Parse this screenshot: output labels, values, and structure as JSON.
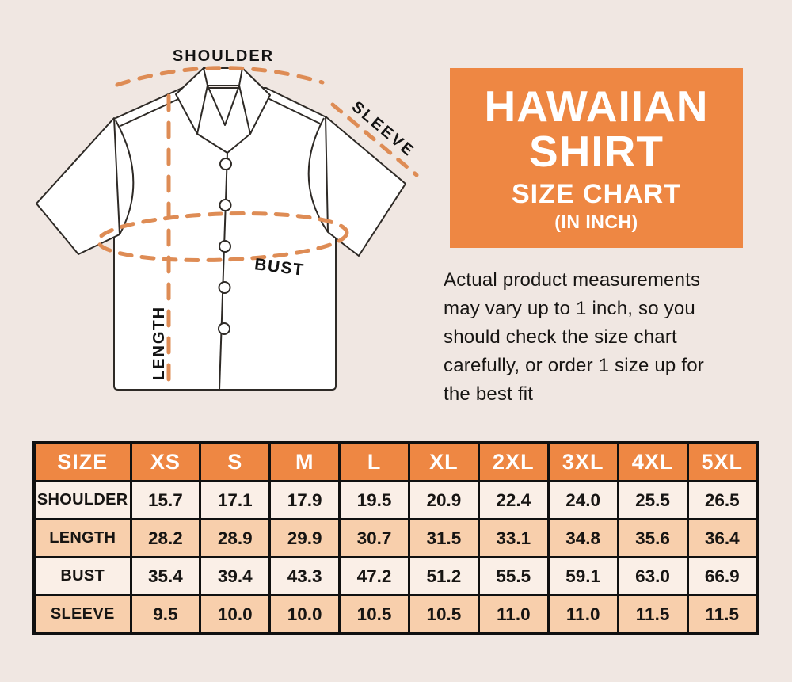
{
  "colors": {
    "background": "#F0E7E2",
    "accent_orange": "#EE8743",
    "dash_orange": "#DE8C55",
    "row_cream": "#FAEFE7",
    "row_peach": "#F8CFAC",
    "table_border": "#101010",
    "text_dark": "#171513"
  },
  "diagram": {
    "labels": {
      "shoulder": "SHOULDER",
      "sleeve": "SLEEVE",
      "bust": "BUST",
      "length": "LENGTH"
    }
  },
  "header": {
    "title_line1": "HAWAIIAN",
    "title_line2": "SHIRT",
    "subtitle": "SIZE CHART",
    "unit_note": "(IN INCH)"
  },
  "description_lines": [
    "Actual product measurements",
    "may vary up to 1 inch, so you",
    "should check the size chart",
    "carefully, or order 1 size up for",
    "the best fit"
  ],
  "chart_data": {
    "type": "table",
    "columns": [
      "SIZE",
      "XS",
      "S",
      "M",
      "L",
      "XL",
      "2XL",
      "3XL",
      "4XL",
      "5XL"
    ],
    "rows": [
      {
        "label": "SHOULDER",
        "values": [
          "15.7",
          "17.1",
          "17.9",
          "19.5",
          "20.9",
          "22.4",
          "24.0",
          "25.5",
          "26.5"
        ]
      },
      {
        "label": "LENGTH",
        "values": [
          "28.2",
          "28.9",
          "29.9",
          "30.7",
          "31.5",
          "33.1",
          "34.8",
          "35.6",
          "36.4"
        ]
      },
      {
        "label": "BUST",
        "values": [
          "35.4",
          "39.4",
          "43.3",
          "47.2",
          "51.2",
          "55.5",
          "59.1",
          "63.0",
          "66.9"
        ]
      },
      {
        "label": "SLEEVE",
        "values": [
          "9.5",
          "10.0",
          "10.0",
          "10.5",
          "10.5",
          "11.0",
          "11.0",
          "11.5",
          "11.5"
        ]
      }
    ]
  }
}
